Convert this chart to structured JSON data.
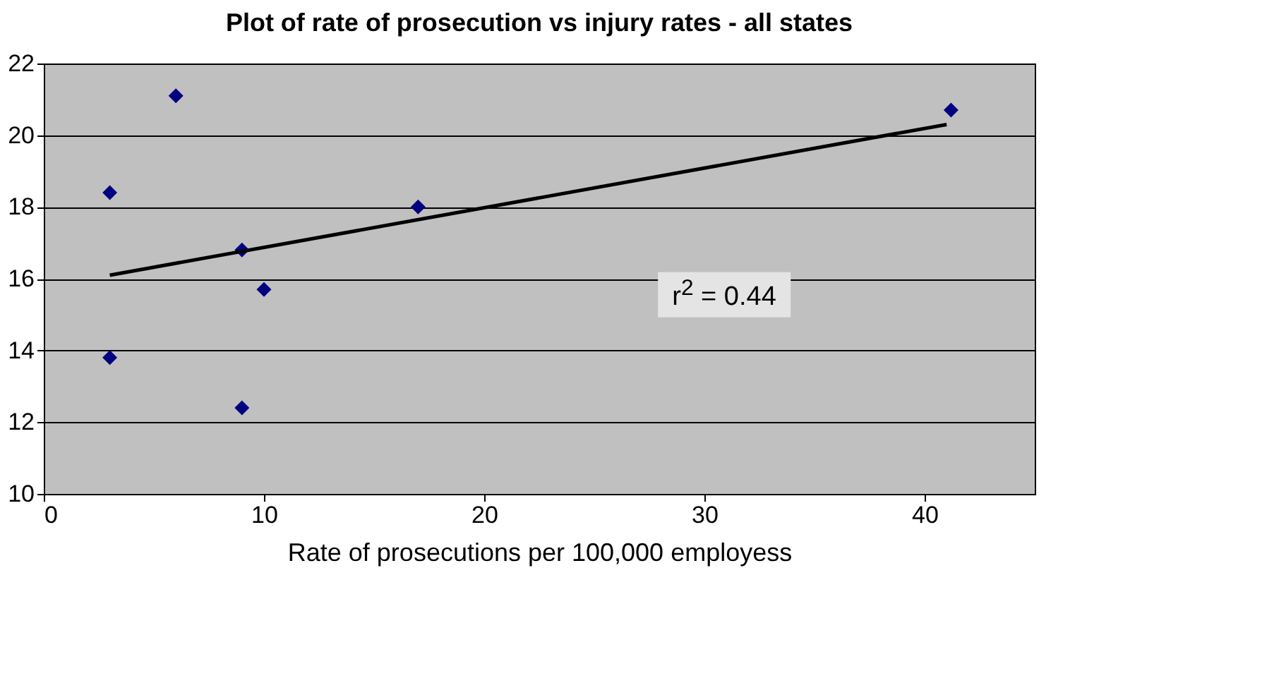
{
  "chart_data": {
    "type": "scatter",
    "title": "Plot of rate of prosecution vs injury rates - all states",
    "xlabel": "Rate of prosecutions per 100,000 employess",
    "xlim": [
      0,
      45
    ],
    "xticks": [
      0,
      10,
      20,
      30,
      40
    ],
    "ylim": [
      10,
      22
    ],
    "yticks": [
      10,
      12,
      14,
      16,
      18,
      20,
      22
    ],
    "grid": "y",
    "series": [
      {
        "marker": "diamond",
        "color": "#000080",
        "x": [
          6,
          3,
          3,
          9,
          10,
          9,
          17,
          41.2
        ],
        "values": [
          21.1,
          18.4,
          13.8,
          16.8,
          15.7,
          12.4,
          18.0,
          20.7
        ]
      },
      {
        "type": "line",
        "color": "#000000",
        "line_style": "solid",
        "x": [
          3,
          41
        ],
        "values": [
          16.1,
          20.3
        ]
      }
    ],
    "annotations": [
      "r$^{2}$ = 0.44"
    ]
  }
}
